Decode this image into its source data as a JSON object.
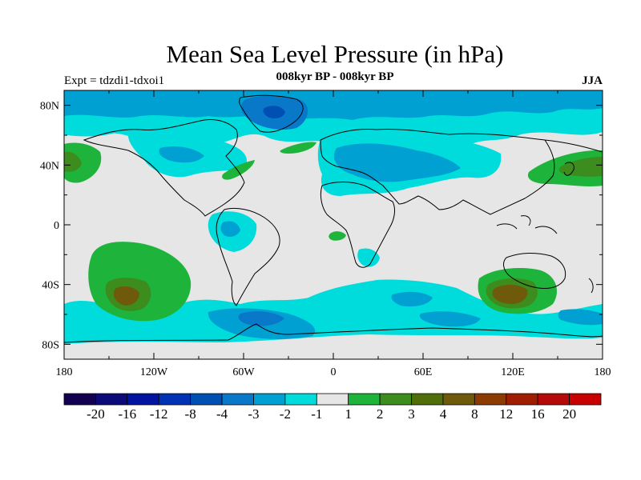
{
  "title": "Mean Sea Level Pressure (in hPa)",
  "subtitle": "008kyr BP - 008kyr BP",
  "experiment": "Expt = tdzdi1-tdxoi1",
  "season": "JJA",
  "lat_ticks": [
    "80N",
    "40N",
    "0",
    "40S",
    "80S"
  ],
  "lon_ticks": [
    "180",
    "120W",
    "60W",
    "0",
    "60E",
    "120E",
    "180"
  ],
  "colorbar": {
    "colors": [
      "#140050",
      "#0a0a78",
      "#0014a0",
      "#0032b4",
      "#0050b4",
      "#0a78c8",
      "#00a0d2",
      "#00dcdc",
      "#e6e6e6",
      "#1eb43c",
      "#3c8c1e",
      "#506e0a",
      "#6e5a0a",
      "#8c3c00",
      "#a01e00",
      "#b40a0a",
      "#c80000"
    ],
    "labels": [
      "-20",
      "-16",
      "-12",
      "-8",
      "-4",
      "-3",
      "-2",
      "-1",
      "1",
      "2",
      "3",
      "4",
      "8",
      "12",
      "16",
      "20"
    ]
  },
  "colors": {
    "background_field": "#e6e6e6",
    "neg_light": "#00dcdc",
    "neg_mid": "#00a0d2",
    "neg_strong": "#0a78c8",
    "neg_deep": "#0050b4",
    "pos_light": "#1eb43c",
    "pos_mid": "#3c8c1e",
    "pos_strong": "#6e5a0a"
  }
}
